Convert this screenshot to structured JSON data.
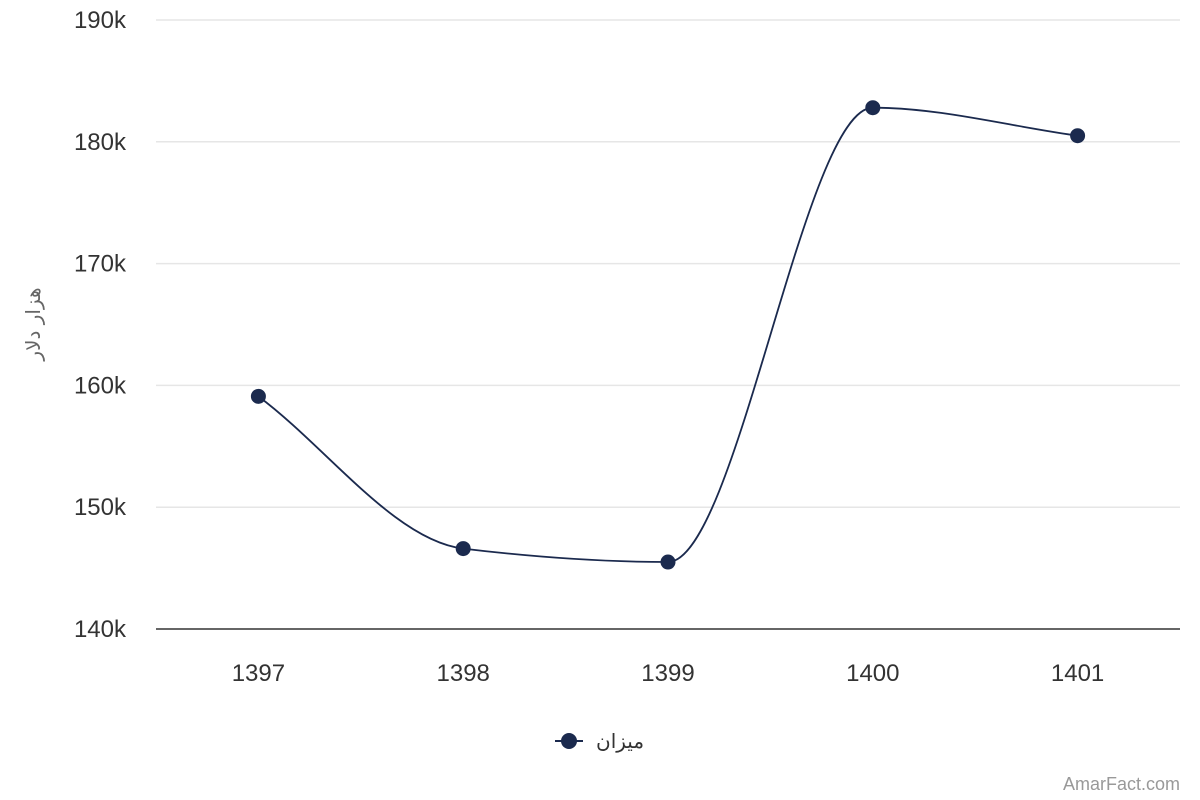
{
  "chart_data": {
    "type": "line",
    "categories": [
      "1397",
      "1398",
      "1399",
      "1400",
      "1401"
    ],
    "series": [
      {
        "name": "میزان",
        "values": [
          159100,
          146600,
          145500,
          182800,
          180500
        ],
        "color": "#1b2a4e"
      }
    ],
    "ylabel": "هزار دلار",
    "ylim": [
      140000,
      190000
    ],
    "yticks": [
      140000,
      150000,
      160000,
      170000,
      180000,
      190000
    ],
    "ytick_labels": [
      "140k",
      "150k",
      "160k",
      "170k",
      "180k",
      "190k"
    ],
    "grid": true,
    "legend_position": "bottom-center",
    "line_style": "smooth"
  },
  "credit": "AmarFact.com",
  "colors": {
    "series": "#1b2a4e",
    "grid": "#e6e6e6",
    "axis": "#333333"
  }
}
